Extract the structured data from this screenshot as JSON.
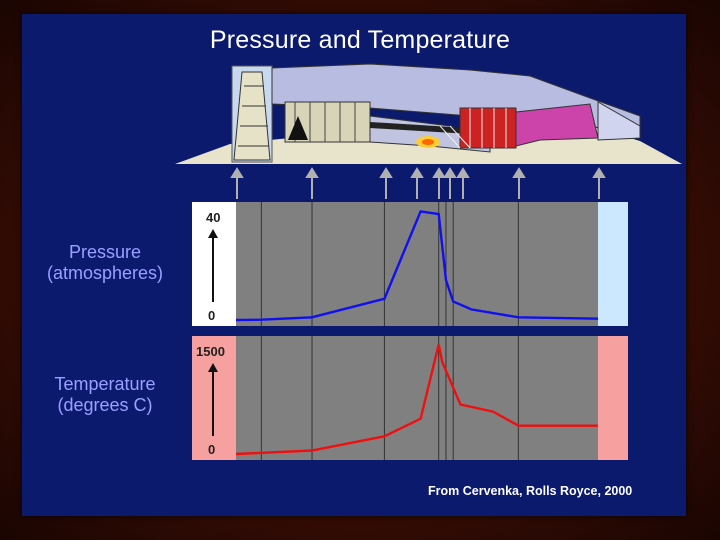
{
  "title": "Pressure and Temperature",
  "pressure_label_line1": "Pressure",
  "pressure_label_line2": "(atmospheres)",
  "temperature_label_line1": "Temperature",
  "temperature_label_line2": "(degrees C)",
  "credit": "From Cervenka, Rolls Royce, 2000",
  "colors": {
    "slide_bg": "#0c1a6e",
    "pressure_line": "#1010ee",
    "temperature_line": "#ee1010",
    "plot_bg": "#808080",
    "pressure_end_band": "#cce8ff",
    "temperature_end_band": "#f6a0a0"
  },
  "chart_data": [
    {
      "type": "line",
      "name": "pressure",
      "ylabel": "Pressure (atmospheres)",
      "ytick_labels": [
        "40",
        "0"
      ],
      "ylim": [
        0,
        40
      ],
      "x": [
        0,
        0.07,
        0.21,
        0.41,
        0.51,
        0.56,
        0.58,
        0.6,
        0.65,
        0.78,
        1.0
      ],
      "values": [
        0,
        0.1,
        1,
        8,
        41,
        40,
        15,
        7,
        4,
        1,
        0.5
      ]
    },
    {
      "type": "line",
      "name": "temperature",
      "ylabel": "Temperature (degrees C)",
      "ytick_labels": [
        "1500",
        "0"
      ],
      "ylim": [
        0,
        1500
      ],
      "x": [
        0,
        0.21,
        0.41,
        0.51,
        0.56,
        0.57,
        0.62,
        0.71,
        0.78,
        1.0
      ],
      "values": [
        0,
        50,
        250,
        500,
        1550,
        1300,
        700,
        600,
        400,
        400
      ]
    }
  ]
}
